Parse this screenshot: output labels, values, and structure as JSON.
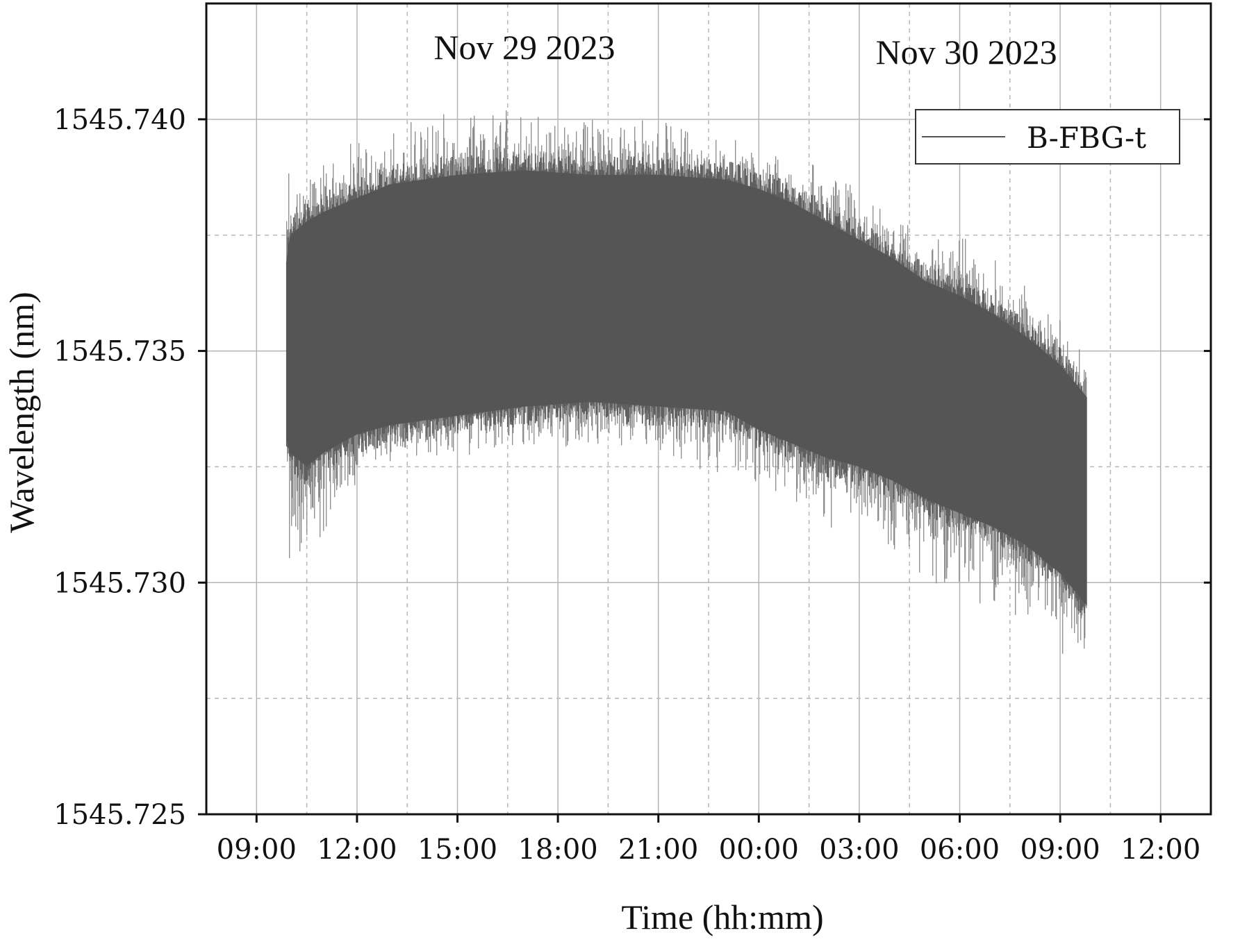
{
  "chart_data": {
    "type": "line",
    "xlabel": "Time (hh:mm)",
    "ylabel": "Wavelength (nm)",
    "x_ticks": [
      "09:00",
      "12:00",
      "15:00",
      "18:00",
      "21:00",
      "00:00",
      "03:00",
      "06:00",
      "09:00",
      "12:00"
    ],
    "x_tick_hours": [
      0,
      3,
      6,
      9,
      12,
      15,
      18,
      21,
      24,
      27
    ],
    "xlim_hours_from_first_tick": [
      -1.5,
      28.5
    ],
    "y_ticks": [
      "1545.725",
      "1545.730",
      "1545.735",
      "1545.740"
    ],
    "y_tick_values": [
      1545.725,
      1545.73,
      1545.735,
      1545.74
    ],
    "ylim": [
      1545.725,
      1545.7425
    ],
    "grid": true,
    "legend_position": "top-right",
    "annotations": [
      {
        "text": "Nov 29 2023",
        "x_hours": 8.0,
        "y": 1545.7413
      },
      {
        "text": "Nov 30 2023",
        "x_hours": 21.2,
        "y": 1545.7412
      }
    ],
    "series": [
      {
        "name": "B-FBG-t",
        "color": "#555555",
        "x_hours": [
          0.9,
          1.0,
          1.5,
          2.0,
          3.0,
          4.0,
          6.0,
          8.0,
          10.0,
          12.0,
          14.0,
          15.0,
          16.0,
          17.0,
          18.0,
          19.0,
          20.0,
          21.0,
          22.0,
          23.0,
          24.0,
          24.8
        ],
        "band_low": [
          1545.7331,
          1545.7328,
          1545.7325,
          1545.7328,
          1545.7332,
          1545.7334,
          1545.7336,
          1545.7338,
          1545.7339,
          1545.7338,
          1545.7337,
          1545.7333,
          1545.733,
          1545.7327,
          1545.7325,
          1545.7322,
          1545.7318,
          1545.7315,
          1545.7312,
          1545.7308,
          1545.7302,
          1545.7295
        ],
        "band_high": [
          1545.737,
          1545.7375,
          1545.7378,
          1545.738,
          1545.7383,
          1545.7386,
          1545.7388,
          1545.7389,
          1545.7388,
          1545.7388,
          1545.7387,
          1545.7385,
          1545.7382,
          1545.7378,
          1545.7374,
          1545.737,
          1545.7365,
          1545.7362,
          1545.7358,
          1545.7353,
          1545.7347,
          1545.734
        ],
        "spike_high": [
          1545.741,
          1545.7384,
          1545.7387,
          1545.7393,
          1545.7397,
          1545.74,
          1545.7402,
          1545.7403,
          1545.74,
          1545.7402,
          1545.7397,
          1545.7394,
          1545.7392,
          1545.7391,
          1545.7385,
          1545.7381,
          1545.7377,
          1545.7375,
          1545.7371,
          1545.7367,
          1545.736,
          1545.7353
        ],
        "spike_low": [
          1545.7331,
          1545.7293,
          1545.7299,
          1545.73,
          1545.7322,
          1545.7324,
          1545.7326,
          1545.7328,
          1545.7329,
          1545.7327,
          1545.7322,
          1545.732,
          1545.7316,
          1545.7312,
          1545.731,
          1545.7305,
          1545.7301,
          1545.7296,
          1545.7292,
          1545.7288,
          1545.7283,
          1545.7278
        ]
      }
    ]
  }
}
